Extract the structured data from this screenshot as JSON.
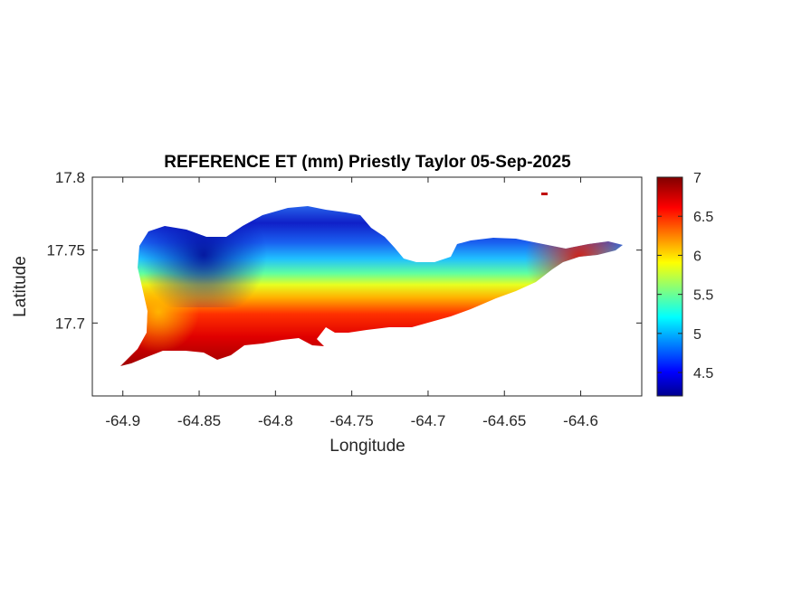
{
  "title": "REFERENCE ET (mm) Priestly Taylor 05-Sep-2025",
  "xlabel": "Longitude",
  "ylabel": "Latitude",
  "x_ticks": [
    "-64.9",
    "-64.85",
    "-64.8",
    "-64.75",
    "-64.7",
    "-64.65",
    "-64.6"
  ],
  "y_ticks": [
    "17.8",
    "17.75",
    "17.7"
  ],
  "colorbar_ticks": [
    "7",
    "6.5",
    "6",
    "5.5",
    "5",
    "4.5"
  ],
  "chart_data": {
    "type": "heatmap",
    "title": "REFERENCE ET (mm) Priestly Taylor 05-Sep-2025",
    "xlabel": "Longitude",
    "ylabel": "Latitude",
    "xlim": [
      -64.92,
      -64.56
    ],
    "ylim": [
      17.65,
      17.8
    ],
    "x_ticks": [
      -64.9,
      -64.85,
      -64.8,
      -64.75,
      -64.7,
      -64.65,
      -64.6
    ],
    "y_ticks": [
      17.7,
      17.75,
      17.8
    ],
    "colorbar": {
      "colormap": "jet",
      "range": [
        4.2,
        7.0
      ],
      "ticks": [
        4.5,
        5,
        5.5,
        6,
        6.5,
        7
      ]
    },
    "value_regions": [
      {
        "area": "northwest interior",
        "value": 4.4
      },
      {
        "area": "north central",
        "value": 4.9
      },
      {
        "area": "central band",
        "value": 5.6
      },
      {
        "area": "west coast",
        "value": 6.1
      },
      {
        "area": "south coast",
        "value": 6.9
      },
      {
        "area": "east end",
        "value": 6.8
      }
    ]
  }
}
